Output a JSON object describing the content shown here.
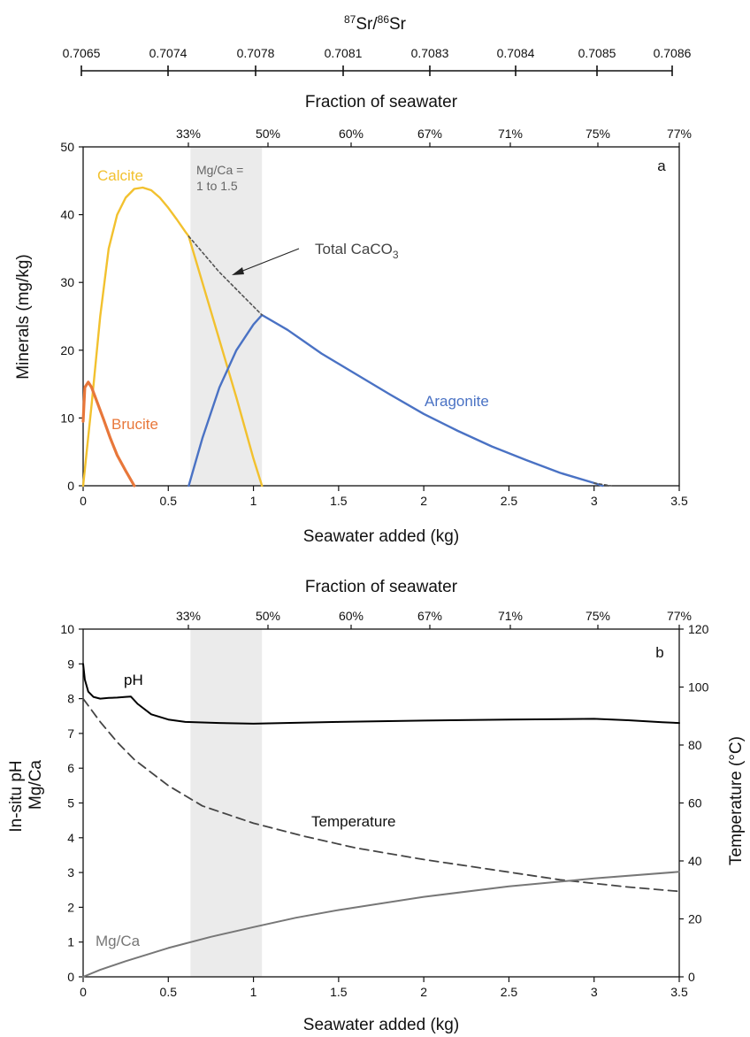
{
  "sr_axis": {
    "title_sup1": "87",
    "title_sr1": "Sr/",
    "title_sup2": "86",
    "title_sr2": "Sr",
    "ticks": [
      "0.7065",
      "0.7074",
      "0.7078",
      "0.7081",
      "0.7083",
      "0.7084",
      "0.7085",
      "0.7086"
    ]
  },
  "fraction_ticks": [
    "33%",
    "50%",
    "60%",
    "67%",
    "71%",
    "75%",
    "77%"
  ],
  "colors": {
    "calcite": "#F2C12E",
    "brucite": "#E8773A",
    "aragonite": "#4A72C4",
    "total": "#555555",
    "ph": "#000000",
    "temperature": "#444444",
    "mgca": "#777777",
    "shade": "#EBEBEB"
  },
  "chart_data": [
    {
      "type": "line",
      "panel_label": "a",
      "xlabel": "Seawater added (kg)",
      "ylabel": "Minerals (mg/kg)",
      "top_label": "Fraction of seawater",
      "xlim": [
        0,
        3.5
      ],
      "ylim": [
        0,
        50
      ],
      "x_ticks": [
        "0",
        "0.5",
        "1",
        "1.5",
        "2",
        "2.5",
        "3",
        "3.5"
      ],
      "y_ticks": [
        "0",
        "10",
        "20",
        "30",
        "40",
        "50"
      ],
      "shaded_region": {
        "x": [
          0.63,
          1.05
        ],
        "label_line1": "Mg/Ca =",
        "label_line2": "1 to 1.5"
      },
      "series": [
        {
          "name": "Calcite",
          "x": [
            0,
            0.05,
            0.1,
            0.15,
            0.2,
            0.25,
            0.3,
            0.35,
            0.4,
            0.45,
            0.5,
            0.55,
            0.6,
            0.62,
            0.7,
            0.8,
            0.9,
            1.0,
            1.05
          ],
          "y": [
            0,
            12,
            25,
            35,
            40,
            42.5,
            43.8,
            44,
            43.6,
            42.5,
            41,
            39.3,
            37.5,
            36.8,
            30,
            21.5,
            13,
            4,
            0
          ]
        },
        {
          "name": "Brucite",
          "x": [
            0,
            0.01,
            0.03,
            0.05,
            0.08,
            0.12,
            0.16,
            0.2,
            0.25,
            0.3
          ],
          "y": [
            9.5,
            14.5,
            15.3,
            14.5,
            12.5,
            9.8,
            7,
            4.5,
            2.2,
            0
          ]
        },
        {
          "name": "Aragonite",
          "x": [
            0.62,
            0.7,
            0.8,
            0.9,
            1.0,
            1.05,
            1.2,
            1.4,
            1.6,
            1.8,
            2.0,
            2.2,
            2.4,
            2.6,
            2.8,
            3.0,
            3.05
          ],
          "y": [
            0,
            7,
            14.5,
            20,
            23.8,
            25.2,
            23,
            19.5,
            16.5,
            13.5,
            10.6,
            8.1,
            5.8,
            3.8,
            1.9,
            0.4,
            0
          ]
        },
        {
          "name": "Total CaCO3",
          "x": [
            0.62,
            0.8,
            1.05
          ],
          "y": [
            36.8,
            31.5,
            25.2
          ]
        },
        {
          "name": "Total CaCO3 tail",
          "x": [
            3.0,
            3.05,
            3.1
          ],
          "y": [
            0.4,
            0.2,
            0
          ]
        }
      ],
      "annotations": {
        "calcite": "Calcite",
        "brucite": "Brucite",
        "aragonite": "Aragonite",
        "total_text": "Total CaCO",
        "total_sub": "3"
      }
    },
    {
      "type": "line",
      "panel_label": "b",
      "xlabel": "Seawater added (kg)",
      "ylabel_line1": "In-situ pH",
      "ylabel_line2": "Mg/Ca",
      "y2label": "Temperature (°C)",
      "top_label": "Fraction of seawater",
      "xlim": [
        0,
        3.5
      ],
      "ylim": [
        0,
        10
      ],
      "y2lim": [
        0,
        120
      ],
      "x_ticks": [
        "0",
        "0.5",
        "1",
        "1.5",
        "2",
        "2.5",
        "3",
        "3.5"
      ],
      "y_ticks": [
        "0",
        "1",
        "2",
        "3",
        "4",
        "5",
        "6",
        "7",
        "8",
        "9",
        "10"
      ],
      "y2_ticks": [
        "0",
        "20",
        "40",
        "60",
        "80",
        "100",
        "120"
      ],
      "shaded_region": {
        "x": [
          0.63,
          1.05
        ]
      },
      "series": [
        {
          "name": "pH",
          "x": [
            0,
            0.01,
            0.03,
            0.06,
            0.1,
            0.15,
            0.2,
            0.25,
            0.28,
            0.32,
            0.4,
            0.5,
            0.6,
            0.8,
            1.0,
            1.5,
            2.0,
            2.5,
            3.0,
            3.2,
            3.4,
            3.5
          ],
          "y": [
            9.0,
            8.55,
            8.2,
            8.05,
            8.0,
            8.02,
            8.03,
            8.05,
            8.06,
            7.85,
            7.55,
            7.4,
            7.33,
            7.3,
            7.28,
            7.33,
            7.37,
            7.4,
            7.42,
            7.38,
            7.32,
            7.3
          ]
        },
        {
          "name": "Temperature",
          "axis": "y2",
          "x": [
            0,
            0.1,
            0.2,
            0.3,
            0.5,
            0.7,
            1.0,
            1.3,
            1.6,
            2.0,
            2.4,
            2.8,
            3.2,
            3.5
          ],
          "y": [
            96,
            88,
            81,
            75,
            66,
            59,
            53,
            48.5,
            44.5,
            40.5,
            37,
            33.5,
            31,
            29.5
          ]
        },
        {
          "name": "Mg/Ca",
          "x": [
            0,
            0.1,
            0.25,
            0.5,
            0.75,
            1.0,
            1.25,
            1.5,
            2.0,
            2.5,
            3.0,
            3.5
          ],
          "y": [
            0,
            0.2,
            0.45,
            0.83,
            1.15,
            1.43,
            1.7,
            1.92,
            2.3,
            2.6,
            2.83,
            3.02
          ]
        }
      ],
      "annotations": {
        "ph": "pH",
        "temperature": "Temperature",
        "mgca": "Mg/Ca"
      }
    }
  ]
}
